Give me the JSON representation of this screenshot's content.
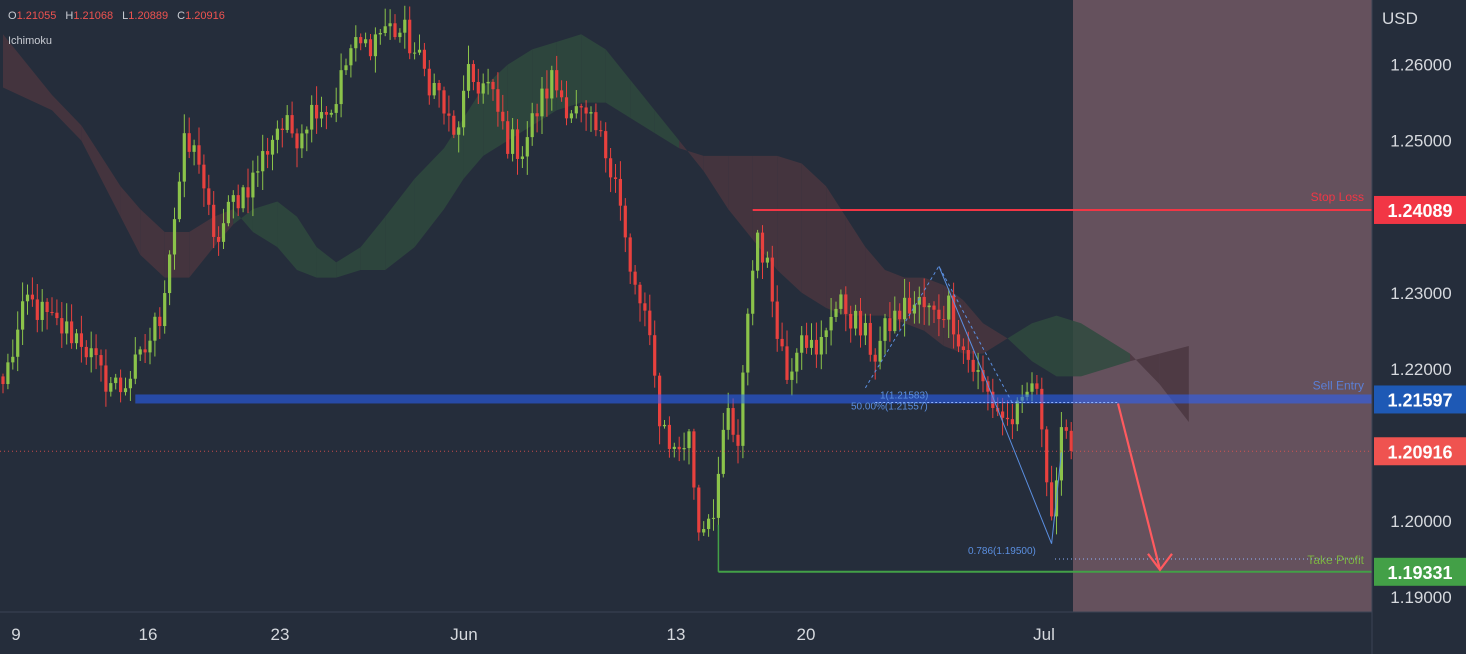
{
  "header": {
    "ohlc": [
      {
        "key": "O",
        "value": "1.21055"
      },
      {
        "key": "H",
        "value": "1.21068"
      },
      {
        "key": "L",
        "value": "1.20889"
      },
      {
        "key": "C",
        "value": "1.20916"
      }
    ],
    "indicator": "Ichimoku",
    "currency": "USD"
  },
  "colors": {
    "background": "#252d3b",
    "bull": "#8bc34a",
    "bear": "#e8413e",
    "stop_loss": "#f23645",
    "sell_entry": "#2962ff",
    "take_profit": "#43a047",
    "current_price": "#ef5350",
    "cloud_green": "#2f4a3e",
    "cloud_red": "#4a3640",
    "projection_zone": "#6a5561"
  },
  "chart_data": {
    "type": "candlestick",
    "instrument_quote": "USD",
    "ylim": [
      1.1825,
      1.2685
    ],
    "y_ticks": [
      "1.26000",
      "1.25000",
      "1.23000",
      "1.22000",
      "1.20000",
      "1.19000"
    ],
    "x_ticks": [
      "9",
      "16",
      "23",
      "Jun",
      "13",
      "20",
      "Jul"
    ],
    "grid": false,
    "levels": [
      {
        "name": "Stop Loss",
        "value": 1.24089,
        "label": "1.24089"
      },
      {
        "name": "Sell Entry",
        "value": 1.21597,
        "label": "1.21597"
      },
      {
        "name": "Current",
        "value": 1.20916,
        "label": "1.20916"
      },
      {
        "name": "Take Profit",
        "value": 1.19331,
        "label": "1.19331"
      }
    ],
    "annotations": [
      {
        "text": "1(1.21583)",
        "value": 1.21583
      },
      {
        "text": "50.00%(1.21557)",
        "value": 1.21557
      },
      {
        "text": "0.786(1.19500)",
        "value": 1.195
      }
    ],
    "anchors": [
      [
        0,
        1.218
      ],
      [
        5,
        1.229
      ],
      [
        10,
        1.226
      ],
      [
        16,
        1.224
      ],
      [
        20,
        1.219
      ],
      [
        24,
        1.2175
      ],
      [
        28,
        1.221
      ],
      [
        32,
        1.227
      ],
      [
        37,
        1.249
      ],
      [
        40,
        1.248
      ],
      [
        43,
        1.236
      ],
      [
        47,
        1.242
      ],
      [
        51,
        1.245
      ],
      [
        56,
        1.252
      ],
      [
        60,
        1.251
      ],
      [
        64,
        1.255
      ],
      [
        67,
        1.254
      ],
      [
        71,
        1.262
      ],
      [
        74,
        1.2625
      ],
      [
        78,
        1.265
      ],
      [
        82,
        1.264
      ],
      [
        86,
        1.259
      ],
      [
        89,
        1.256
      ],
      [
        92,
        1.25
      ],
      [
        95,
        1.258
      ],
      [
        99,
        1.257
      ],
      [
        103,
        1.25
      ],
      [
        106,
        1.249
      ],
      [
        109,
        1.254
      ],
      [
        112,
        1.258
      ],
      [
        115,
        1.255
      ],
      [
        118,
        1.253
      ],
      [
        121,
        1.251
      ],
      [
        125,
        1.246
      ],
      [
        128,
        1.232
      ],
      [
        131,
        1.227
      ],
      [
        134,
        1.214
      ],
      [
        137,
        1.209
      ],
      [
        140,
        1.211
      ],
      [
        142,
        1.199
      ],
      [
        145,
        1.202
      ],
      [
        148,
        1.214
      ],
      [
        150,
        1.2085
      ],
      [
        152,
        1.228
      ],
      [
        154,
        1.238
      ],
      [
        156,
        1.233
      ],
      [
        158,
        1.226
      ],
      [
        160,
        1.219
      ],
      [
        163,
        1.226
      ],
      [
        166,
        1.221
      ],
      [
        169,
        1.228
      ],
      [
        172,
        1.228
      ],
      [
        175,
        1.225
      ],
      [
        178,
        1.222
      ],
      [
        181,
        1.226
      ],
      [
        184,
        1.228
      ],
      [
        187,
        1.2285
      ],
      [
        190,
        1.227
      ],
      [
        193,
        1.2285
      ],
      [
        196,
        1.2225
      ],
      [
        199,
        1.219
      ],
      [
        202,
        1.2155
      ],
      [
        205,
        1.213
      ],
      [
        208,
        1.2145
      ],
      [
        210,
        1.2185
      ],
      [
        212,
        1.213
      ],
      [
        214,
        1.201
      ],
      [
        216,
        1.2105
      ],
      [
        218,
        1.2092
      ]
    ],
    "ichimoku_cloud": {
      "x": [
        0,
        10,
        16,
        20,
        24,
        28,
        33,
        38,
        43,
        47,
        51,
        56,
        60,
        64,
        68,
        73,
        78,
        84,
        90,
        94,
        98,
        103,
        108,
        113,
        118,
        123,
        128,
        133,
        138,
        143,
        148,
        153,
        158,
        163,
        168,
        172,
        176,
        180,
        184,
        188,
        192,
        196,
        200,
        205,
        210,
        215,
        220,
        225,
        230,
        236,
        242
      ],
      "span_a": [
        1.257,
        1.254,
        1.25,
        1.245,
        1.24,
        1.235,
        1.232,
        1.232,
        1.236,
        1.239,
        1.241,
        1.242,
        1.24,
        1.236,
        1.234,
        1.236,
        1.24,
        1.245,
        1.249,
        1.253,
        1.257,
        1.26,
        1.262,
        1.263,
        1.264,
        1.262,
        1.258,
        1.254,
        1.25,
        1.246,
        1.241,
        1.237,
        1.233,
        1.23,
        1.228,
        1.227,
        1.227,
        1.227,
        1.226,
        1.225,
        1.223,
        1.222,
        1.222,
        1.224,
        1.226,
        1.227,
        1.226,
        1.224,
        1.222,
        1.218,
        1.213
      ],
      "span_b": [
        1.264,
        1.256,
        1.252,
        1.248,
        1.244,
        1.241,
        1.238,
        1.238,
        1.24,
        1.241,
        1.238,
        1.236,
        1.233,
        1.232,
        1.232,
        1.233,
        1.233,
        1.236,
        1.241,
        1.245,
        1.248,
        1.25,
        1.252,
        1.254,
        1.255,
        1.255,
        1.253,
        1.251,
        1.249,
        1.248,
        1.248,
        1.248,
        1.248,
        1.247,
        1.244,
        1.24,
        1.236,
        1.233,
        1.232,
        1.232,
        1.231,
        1.229,
        1.226,
        1.224,
        1.221,
        1.219,
        1.219,
        1.22,
        1.221,
        1.222,
        1.223
      ]
    }
  }
}
